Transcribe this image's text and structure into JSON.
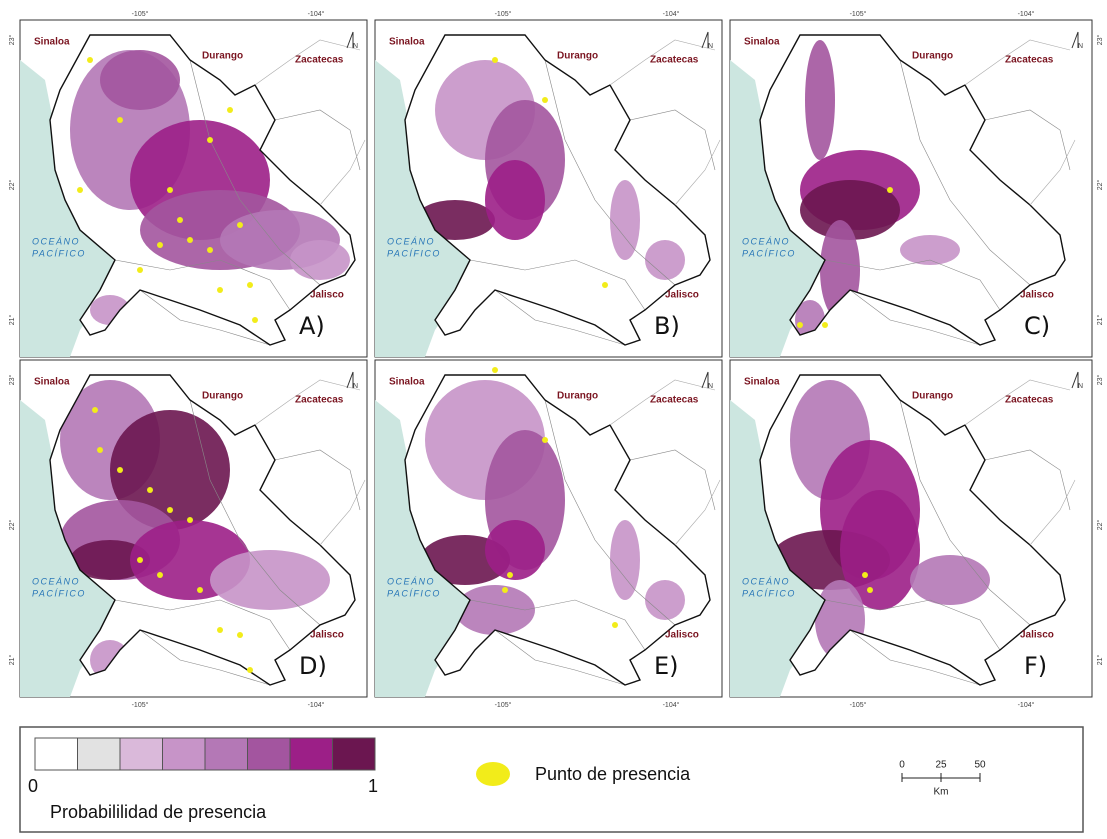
{
  "panels": [
    {
      "label": "A)",
      "places": [
        "Sinaloa",
        "Durango",
        "Zacatecas",
        "Jalisco"
      ],
      "ocean": [
        "OCEÁNO",
        "PACÍFICO"
      ],
      "north": "N",
      "x_ticks": [
        "-105°",
        "-104°"
      ],
      "y_ticks": [
        "23°",
        "22°",
        "21°"
      ]
    },
    {
      "label": "B)",
      "places": [
        "Sinaloa",
        "Durango",
        "Zacatecas",
        "Jalisco"
      ],
      "ocean": [
        "OCEÁNO",
        "PACÍFICO"
      ],
      "north": "N",
      "x_ticks": [
        "-105°",
        "-104°"
      ],
      "y_ticks": []
    },
    {
      "label": "C)",
      "places": [
        "Sinaloa",
        "Durango",
        "Zacatecas",
        "Jalisco"
      ],
      "ocean": [
        "OCEÁNO",
        "PACÍFICO"
      ],
      "north": "N",
      "x_ticks": [
        "-105°",
        "-104°"
      ],
      "y_ticks": [
        "23°",
        "22°",
        "21°"
      ]
    },
    {
      "label": "D)",
      "places": [
        "Sinaloa",
        "Durango",
        "Zacatecas",
        "Jalisco"
      ],
      "ocean": [
        "OCEÁNO",
        "PACÍFICO"
      ],
      "north": "N",
      "x_ticks": [
        "-105°",
        "-104°"
      ],
      "y_ticks": [
        "23°",
        "22°",
        "21°"
      ]
    },
    {
      "label": "E)",
      "places": [
        "Sinaloa",
        "Durango",
        "Zacatecas",
        "Jalisco"
      ],
      "ocean": [
        "OCEÁNO",
        "PACÍFICO"
      ],
      "north": "N",
      "x_ticks": [
        "-105°",
        "-104°"
      ],
      "y_ticks": []
    },
    {
      "label": "F)",
      "places": [
        "Sinaloa",
        "Durango",
        "Zacatecas",
        "Jalisco"
      ],
      "ocean": [
        "OCEÁNO",
        "PACÍFICO"
      ],
      "north": "N",
      "x_ticks": [
        "-105°",
        "-104°"
      ],
      "y_ticks": [
        "23°",
        "22°",
        "21°"
      ]
    }
  ],
  "legend": {
    "colors": [
      "#ffffff",
      "#e2e2e2",
      "#dab9da",
      "#c794c8",
      "#b478b6",
      "#a3559f",
      "#9c1f87",
      "#6b1650"
    ],
    "min": "0",
    "max": "1",
    "title": "Probabililidad de presencia",
    "point_label": "Punto de presencia",
    "point_color": "#f2ec1a",
    "scale": {
      "ticks": [
        "0",
        "25",
        "50"
      ],
      "unit": "Km"
    }
  }
}
